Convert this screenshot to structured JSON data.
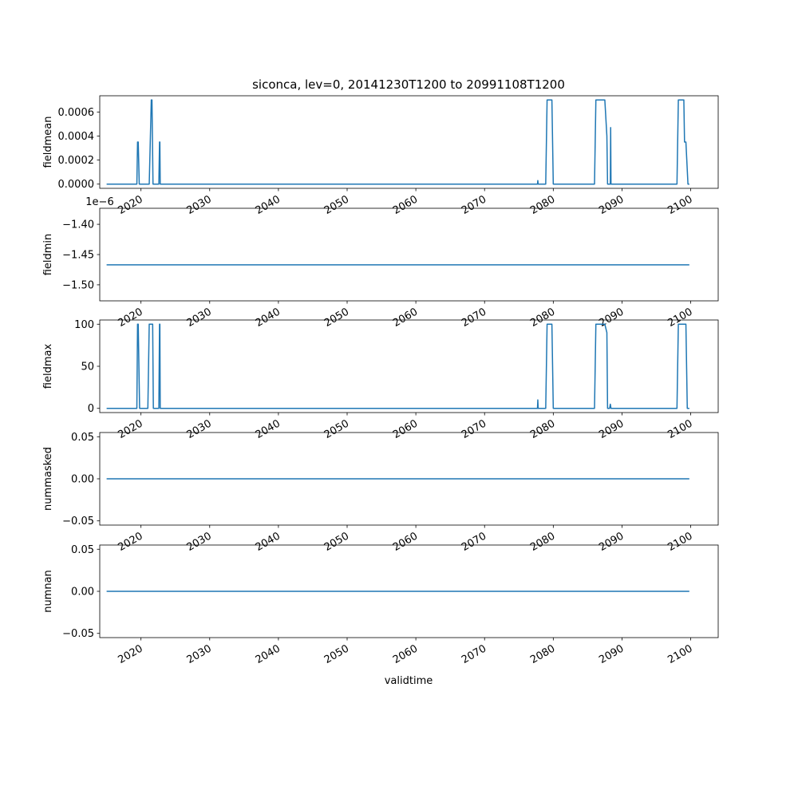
{
  "figure": {
    "title": "siconca, lev=0, 20141230T1200 to 20991108T1200",
    "xlabel": "validtime",
    "line_color": "#1f77b4"
  },
  "chart_data": [
    {
      "type": "line",
      "ylabel": "fieldmean",
      "xlim": [
        2014.0,
        2104.0
      ],
      "ylim": [
        -3.5e-05,
        0.000735
      ],
      "yticks": [
        "0.0000",
        "0.0002",
        "0.0004",
        "0.0006"
      ],
      "ytick_values": [
        0,
        0.0002,
        0.0004,
        0.0006
      ],
      "xticks": [
        "2020",
        "2030",
        "2040",
        "2050",
        "2060",
        "2070",
        "2080",
        "2090",
        "2100"
      ],
      "xtick_values": [
        2020,
        2030,
        2040,
        2050,
        2060,
        2070,
        2080,
        2090,
        2100
      ],
      "grid": false,
      "series": [
        {
          "x": [
            2015.0,
            2019.4,
            2019.5,
            2019.6,
            2019.75,
            2019.9,
            2021.2,
            2021.5,
            2021.6,
            2021.75,
            2022.0,
            2022.6,
            2022.7,
            2022.75,
            2022.8,
            2077.7,
            2077.75,
            2077.8,
            2078.9,
            2079.1,
            2079.8,
            2080.0,
            2086.0,
            2086.2,
            2086.4,
            2087.0,
            2087.5,
            2087.8,
            2087.9,
            2088.0,
            2088.3,
            2088.35,
            2088.4,
            2088.5,
            2098.0,
            2098.2,
            2099.0,
            2099.1,
            2099.3,
            2099.6,
            2099.8
          ],
          "y": [
            0,
            0,
            0.00035,
            0.00035,
            0,
            0,
            0,
            0.0007,
            0.0007,
            0,
            0,
            0,
            0.00035,
            0.00035,
            0,
            0,
            3e-05,
            0,
            0,
            0.0007,
            0.0007,
            0,
            0,
            0.0007,
            0.0007,
            0.0007,
            0.0007,
            0.0004,
            0,
            0,
            0,
            0.00047,
            0,
            0,
            0,
            0.0007,
            0.0007,
            0.00035,
            0.00035,
            0,
            0
          ]
        }
      ]
    },
    {
      "type": "line",
      "ylabel": "fieldmin",
      "offset_text": "1e−6",
      "xlim": [
        2014.0,
        2104.0
      ],
      "ylim": [
        -1.5265,
        -1.3735
      ],
      "yticks": [
        "−1.40",
        "−1.45",
        "−1.50"
      ],
      "ytick_values": [
        -1.4,
        -1.45,
        -1.5
      ],
      "xticks": [
        "2020",
        "2030",
        "2040",
        "2050",
        "2060",
        "2070",
        "2080",
        "2090",
        "2100"
      ],
      "xtick_values": [
        2020,
        2030,
        2040,
        2050,
        2060,
        2070,
        2080,
        2090,
        2100
      ],
      "grid": false,
      "series": [
        {
          "x": [
            2015.0,
            2099.8
          ],
          "y": [
            -1.467,
            -1.467
          ]
        }
      ]
    },
    {
      "type": "line",
      "ylabel": "fieldmax",
      "xlim": [
        2014.0,
        2104.0
      ],
      "ylim": [
        -5,
        105
      ],
      "yticks": [
        "0",
        "50",
        "100"
      ],
      "ytick_values": [
        0,
        50,
        100
      ],
      "xticks": [
        "2020",
        "2030",
        "2040",
        "2050",
        "2060",
        "2070",
        "2080",
        "2090",
        "2100"
      ],
      "xtick_values": [
        2020,
        2030,
        2040,
        2050,
        2060,
        2070,
        2080,
        2090,
        2100
      ],
      "grid": false,
      "series": [
        {
          "x": [
            2015.0,
            2019.4,
            2019.5,
            2019.6,
            2019.8,
            2021.0,
            2021.2,
            2021.7,
            2021.8,
            2022.6,
            2022.7,
            2022.75,
            2022.8,
            2077.7,
            2077.75,
            2077.8,
            2078.9,
            2079.1,
            2079.8,
            2080.0,
            2086.0,
            2086.2,
            2087.5,
            2087.8,
            2087.9,
            2088.2,
            2088.3,
            2088.4,
            2098.0,
            2098.2,
            2099.3,
            2099.5,
            2099.8
          ],
          "y": [
            0,
            0,
            100,
            100,
            0,
            0,
            100,
            100,
            0,
            0,
            100,
            100,
            0,
            0,
            10,
            0,
            0,
            100,
            100,
            0,
            0,
            100,
            100,
            90,
            0,
            0,
            5,
            0,
            0,
            100,
            100,
            0,
            0
          ]
        }
      ]
    },
    {
      "type": "line",
      "ylabel": "nummasked",
      "xlim": [
        2014.0,
        2104.0
      ],
      "ylim": [
        -0.055,
        0.055
      ],
      "yticks": [
        "0.05",
        "0.00",
        "−0.05"
      ],
      "ytick_values": [
        0.05,
        0.0,
        -0.05
      ],
      "xticks": [
        "2020",
        "2030",
        "2040",
        "2050",
        "2060",
        "2070",
        "2080",
        "2090",
        "2100"
      ],
      "xtick_values": [
        2020,
        2030,
        2040,
        2050,
        2060,
        2070,
        2080,
        2090,
        2100
      ],
      "grid": false,
      "series": [
        {
          "x": [
            2015.0,
            2099.8
          ],
          "y": [
            0,
            0
          ]
        }
      ]
    },
    {
      "type": "line",
      "ylabel": "numnan",
      "xlim": [
        2014.0,
        2104.0
      ],
      "ylim": [
        -0.055,
        0.055
      ],
      "yticks": [
        "0.05",
        "0.00",
        "−0.05"
      ],
      "ytick_values": [
        0.05,
        0.0,
        -0.05
      ],
      "xticks": [
        "2020",
        "2030",
        "2040",
        "2050",
        "2060",
        "2070",
        "2080",
        "2090",
        "2100"
      ],
      "xtick_values": [
        2020,
        2030,
        2040,
        2050,
        2060,
        2070,
        2080,
        2090,
        2100
      ],
      "grid": false,
      "series": [
        {
          "x": [
            2015.0,
            2099.8
          ],
          "y": [
            0,
            0
          ]
        }
      ]
    }
  ]
}
